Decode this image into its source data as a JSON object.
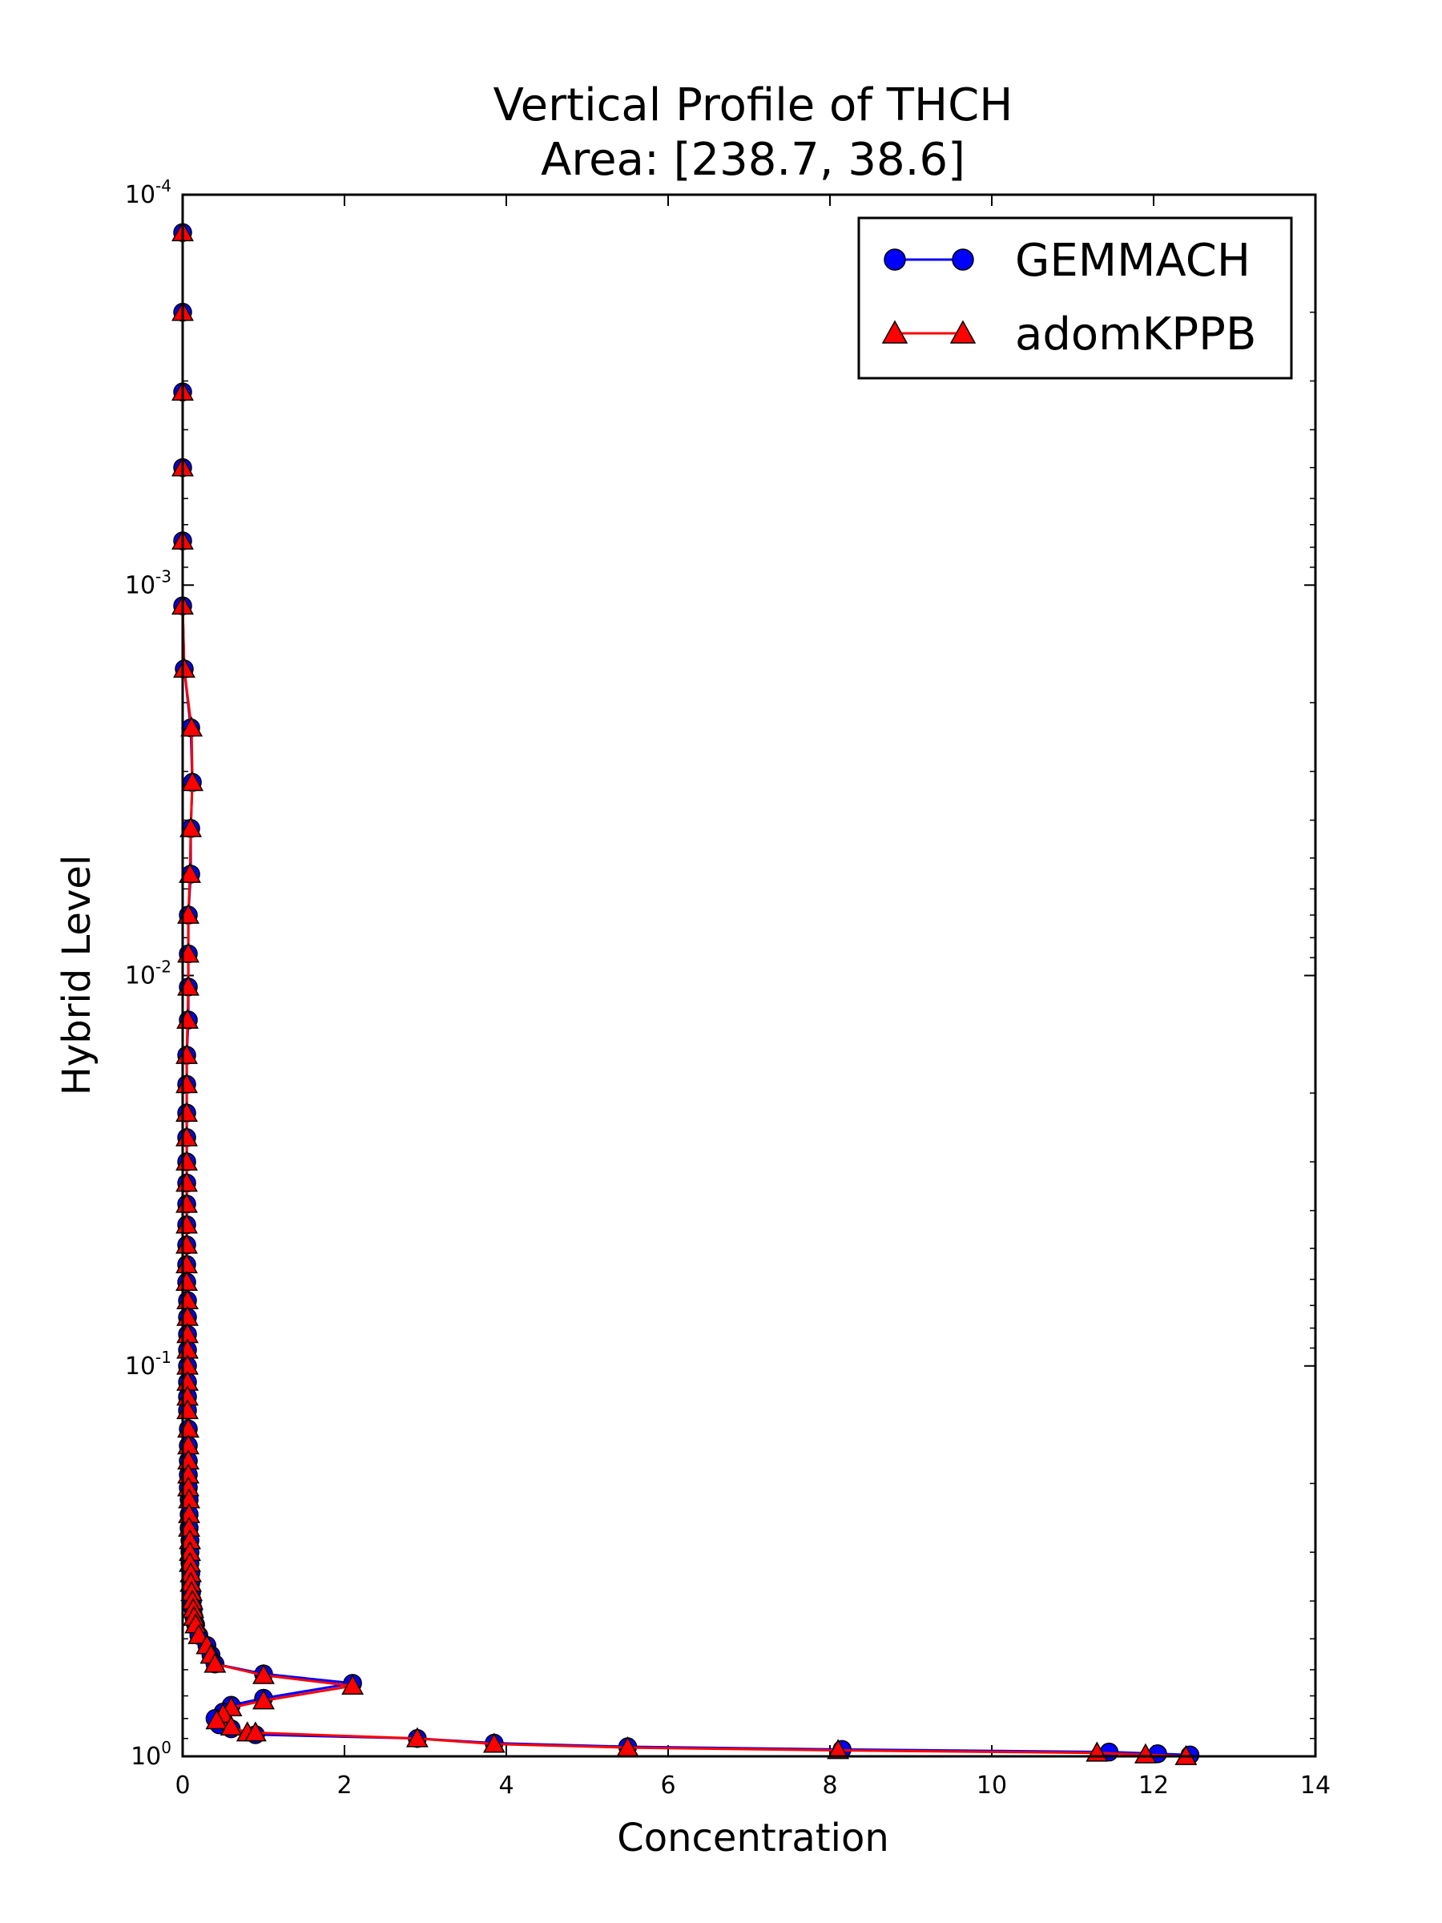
{
  "chart_data": {
    "type": "line",
    "title": "Vertical Profile of THCH",
    "subtitle": "Area: [238.7, 38.6]",
    "xlabel": "Concentration",
    "ylabel": "Hybrid Level",
    "xlim": [
      0,
      14
    ],
    "ylim": [
      1,
      0.0001
    ],
    "yscale": "log",
    "y_inverted": true,
    "grid": false,
    "legend_position": "top-right",
    "x_ticks": [
      "0",
      "2",
      "4",
      "6",
      "8",
      "10",
      "12",
      "14"
    ],
    "y_ticks": [
      {
        "base": "10",
        "exp": "-4"
      },
      {
        "base": "10",
        "exp": "-3"
      },
      {
        "base": "10",
        "exp": "-2"
      },
      {
        "base": "10",
        "exp": "-1"
      },
      {
        "base": "10",
        "exp": "0"
      }
    ],
    "series": [
      {
        "name": "GEMMACH",
        "color": "#0000ff",
        "marker": "circle",
        "points": [
          [
            0.0,
            0.000125
          ],
          [
            0.0,
            0.0002
          ],
          [
            0.0,
            0.00032
          ],
          [
            0.0,
            0.0005
          ],
          [
            0.0,
            0.00077
          ],
          [
            0.0,
            0.00113
          ],
          [
            0.02,
            0.00164
          ],
          [
            0.1,
            0.00232
          ],
          [
            0.12,
            0.0032
          ],
          [
            0.1,
            0.0042
          ],
          [
            0.1,
            0.0055
          ],
          [
            0.07,
            0.007
          ],
          [
            0.07,
            0.0088
          ],
          [
            0.07,
            0.0107
          ],
          [
            0.07,
            0.013
          ],
          [
            0.05,
            0.016
          ],
          [
            0.05,
            0.019
          ],
          [
            0.05,
            0.0225
          ],
          [
            0.05,
            0.026
          ],
          [
            0.05,
            0.03
          ],
          [
            0.05,
            0.034
          ],
          [
            0.05,
            0.0385
          ],
          [
            0.05,
            0.0435
          ],
          [
            0.05,
            0.049
          ],
          [
            0.05,
            0.055
          ],
          [
            0.05,
            0.061
          ],
          [
            0.06,
            0.068
          ],
          [
            0.06,
            0.075
          ],
          [
            0.06,
            0.083
          ],
          [
            0.06,
            0.091
          ],
          [
            0.06,
            0.1
          ],
          [
            0.06,
            0.11
          ],
          [
            0.06,
            0.12
          ],
          [
            0.06,
            0.13
          ],
          [
            0.07,
            0.145
          ],
          [
            0.07,
            0.16
          ],
          [
            0.07,
            0.175
          ],
          [
            0.07,
            0.19
          ],
          [
            0.07,
            0.205
          ],
          [
            0.08,
            0.22
          ],
          [
            0.08,
            0.24
          ],
          [
            0.08,
            0.26
          ],
          [
            0.09,
            0.28
          ],
          [
            0.09,
            0.3
          ],
          [
            0.09,
            0.32
          ],
          [
            0.1,
            0.34
          ],
          [
            0.1,
            0.36
          ],
          [
            0.11,
            0.38
          ],
          [
            0.12,
            0.4
          ],
          [
            0.13,
            0.42
          ],
          [
            0.14,
            0.44
          ],
          [
            0.16,
            0.46
          ],
          [
            0.2,
            0.49
          ],
          [
            0.3,
            0.52
          ],
          [
            0.35,
            0.55
          ],
          [
            0.4,
            0.58
          ],
          [
            1.0,
            0.615
          ],
          [
            2.1,
            0.65
          ],
          [
            1.0,
            0.71
          ],
          [
            0.6,
            0.74
          ],
          [
            0.5,
            0.77
          ],
          [
            0.4,
            0.8
          ],
          [
            0.45,
            0.83
          ],
          [
            0.6,
            0.85
          ],
          [
            0.9,
            0.88
          ],
          [
            2.9,
            0.9
          ],
          [
            3.85,
            0.925
          ],
          [
            5.5,
            0.945
          ],
          [
            8.15,
            0.96
          ],
          [
            11.45,
            0.975
          ],
          [
            12.05,
            0.985
          ],
          [
            12.45,
            0.992
          ]
        ]
      },
      {
        "name": "adomKPPB",
        "color": "#ff0000",
        "marker": "triangle",
        "points": [
          [
            0.0,
            0.000125
          ],
          [
            0.0,
            0.0002
          ],
          [
            0.0,
            0.00032
          ],
          [
            0.0,
            0.0005
          ],
          [
            0.0,
            0.00077
          ],
          [
            0.0,
            0.00113
          ],
          [
            0.02,
            0.00164
          ],
          [
            0.11,
            0.00232
          ],
          [
            0.12,
            0.0032
          ],
          [
            0.1,
            0.0042
          ],
          [
            0.09,
            0.0055
          ],
          [
            0.07,
            0.007
          ],
          [
            0.07,
            0.0088
          ],
          [
            0.07,
            0.0107
          ],
          [
            0.06,
            0.013
          ],
          [
            0.05,
            0.016
          ],
          [
            0.05,
            0.019
          ],
          [
            0.05,
            0.0225
          ],
          [
            0.05,
            0.026
          ],
          [
            0.05,
            0.03
          ],
          [
            0.05,
            0.034
          ],
          [
            0.05,
            0.0385
          ],
          [
            0.05,
            0.0435
          ],
          [
            0.05,
            0.049
          ],
          [
            0.05,
            0.055
          ],
          [
            0.05,
            0.061
          ],
          [
            0.06,
            0.068
          ],
          [
            0.06,
            0.075
          ],
          [
            0.06,
            0.083
          ],
          [
            0.06,
            0.091
          ],
          [
            0.06,
            0.1
          ],
          [
            0.06,
            0.11
          ],
          [
            0.06,
            0.12
          ],
          [
            0.06,
            0.13
          ],
          [
            0.07,
            0.145
          ],
          [
            0.07,
            0.16
          ],
          [
            0.07,
            0.175
          ],
          [
            0.07,
            0.19
          ],
          [
            0.07,
            0.205
          ],
          [
            0.08,
            0.22
          ],
          [
            0.08,
            0.24
          ],
          [
            0.08,
            0.26
          ],
          [
            0.09,
            0.28
          ],
          [
            0.09,
            0.3
          ],
          [
            0.09,
            0.32
          ],
          [
            0.1,
            0.34
          ],
          [
            0.1,
            0.36
          ],
          [
            0.11,
            0.38
          ],
          [
            0.12,
            0.4
          ],
          [
            0.13,
            0.42
          ],
          [
            0.14,
            0.44
          ],
          [
            0.16,
            0.46
          ],
          [
            0.2,
            0.49
          ],
          [
            0.3,
            0.52
          ],
          [
            0.35,
            0.55
          ],
          [
            0.4,
            0.58
          ],
          [
            1.0,
            0.62
          ],
          [
            2.1,
            0.66
          ],
          [
            1.0,
            0.72
          ],
          [
            0.6,
            0.75
          ],
          [
            0.5,
            0.78
          ],
          [
            0.42,
            0.81
          ],
          [
            0.6,
            0.84
          ],
          [
            0.8,
            0.87
          ],
          [
            0.9,
            0.87
          ],
          [
            2.9,
            0.9
          ],
          [
            3.85,
            0.93
          ],
          [
            5.5,
            0.95
          ],
          [
            8.1,
            0.965
          ],
          [
            11.3,
            0.98
          ],
          [
            11.9,
            0.99
          ],
          [
            12.4,
            1.0
          ]
        ]
      }
    ]
  }
}
